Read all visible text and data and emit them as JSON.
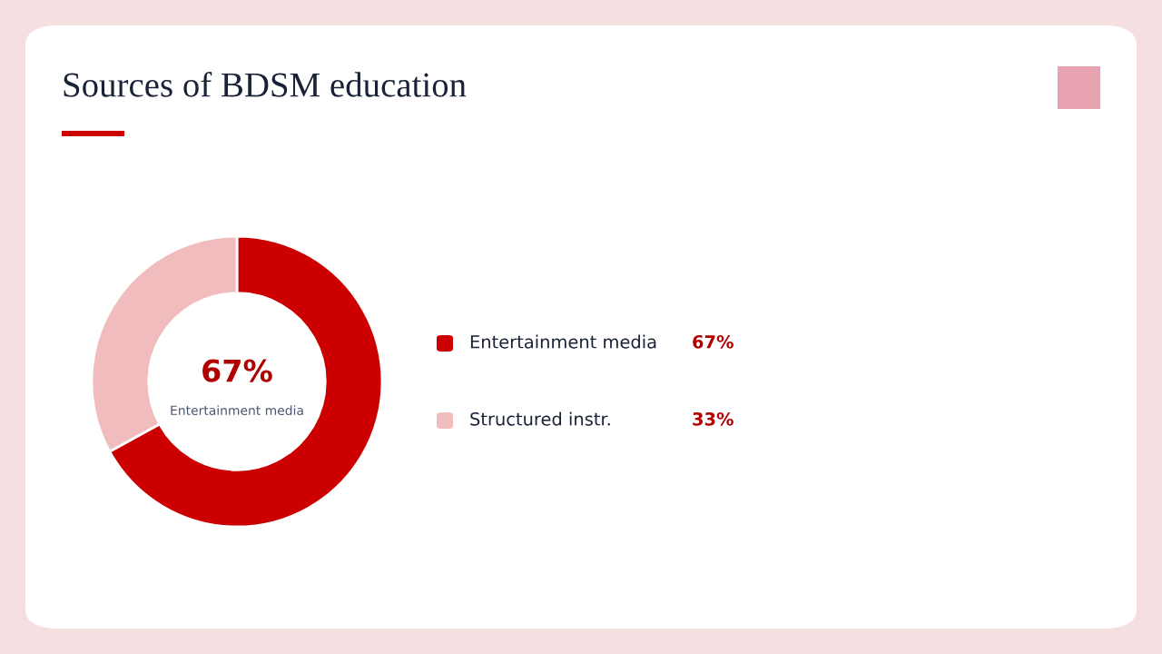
{
  "chart_data": {
    "type": "donut",
    "title": "Sources of BDSM education",
    "categories": [
      "Entertainment media",
      "Structured instr."
    ],
    "values": [
      67,
      33
    ],
    "colors": [
      "#cc0000",
      "#f0bcbd"
    ],
    "value_labels": [
      "67%",
      "33%"
    ],
    "legend": "right",
    "annotations": [
      "67%",
      "Entertainment media"
    ]
  }
}
